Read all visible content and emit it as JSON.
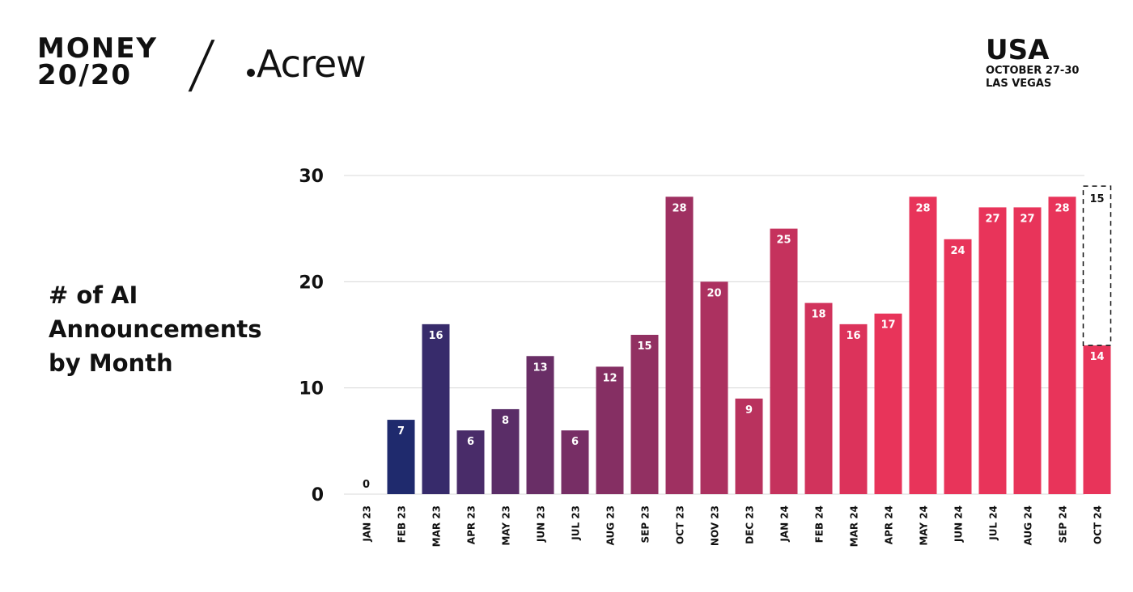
{
  "header": {
    "logo_left": [
      "MONEY",
      "20/20"
    ],
    "separator": "/",
    "logo_right": "Acrew",
    "event_country": "USA",
    "event_dates": "OCTOBER 27-30",
    "event_location": "LAS VEGAS"
  },
  "chart_data": {
    "type": "bar",
    "title": "# of AI Announcements by Month",
    "xlabel": "",
    "ylabel": "",
    "ylim": [
      0,
      30
    ],
    "yticks": [
      0,
      10,
      20,
      30
    ],
    "grid": true,
    "categories": [
      "JAN 23",
      "FEB 23",
      "MAR 23",
      "APR 23",
      "MAY 23",
      "JUN 23",
      "JUL 23",
      "AUG 23",
      "SEP 23",
      "OCT 23",
      "NOV 23",
      "DEC 23",
      "JAN 24",
      "FEB 24",
      "MAR 24",
      "APR 24",
      "MAY 24",
      "JUN 24",
      "JUL 24",
      "AUG 24",
      "SEP 24",
      "OCT 24"
    ],
    "values": [
      0,
      7,
      16,
      6,
      8,
      13,
      6,
      12,
      15,
      28,
      20,
      9,
      25,
      18,
      16,
      17,
      28,
      24,
      27,
      27,
      28,
      14
    ],
    "projected": {
      "category": "OCT 24",
      "additional": 15
    },
    "colors": {
      "start": "#1f2a6d",
      "end": "#e8345a"
    }
  }
}
